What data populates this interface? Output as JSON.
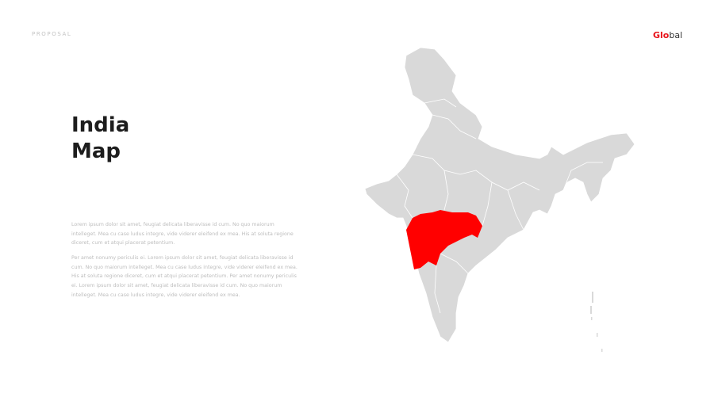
{
  "header": {
    "label": "PROPOSAL",
    "logo_red": "Glo",
    "logo_dark": "bal"
  },
  "title_line1": "India",
  "title_line2": "Map",
  "paragraphs": [
    "Lorem ipsum dolor sit amet, feugiat delicata liberavisse id cum. No quo maiorum intelleget. Mea cu case ludus integre, vide viderer eleifend ex mea. His at soluta regione diceret, cum et atqui placerat petentium.",
    "Per amet nonumy periculis ei. Lorem ipsum dolor sit amet, feugiat delicata liberavisse id cum. No quo maiorum intelleget. Mea cu case ludus integre, vide viderer eleifend ex mea. His at soluta regione diceret, cum et atqui placerat petentium. Per amet nonumy periculis ei. Lorem ipsum dolor sit amet, feugiat delicata liberavisse id cum. No quo maiorum intelleget. Mea cu case ludus integre, vide viderer eleifend ex mea."
  ],
  "map": {
    "highlighted_region": "Maharashtra",
    "highlight_color": "#ff0000",
    "base_color": "#d9d9d9"
  }
}
